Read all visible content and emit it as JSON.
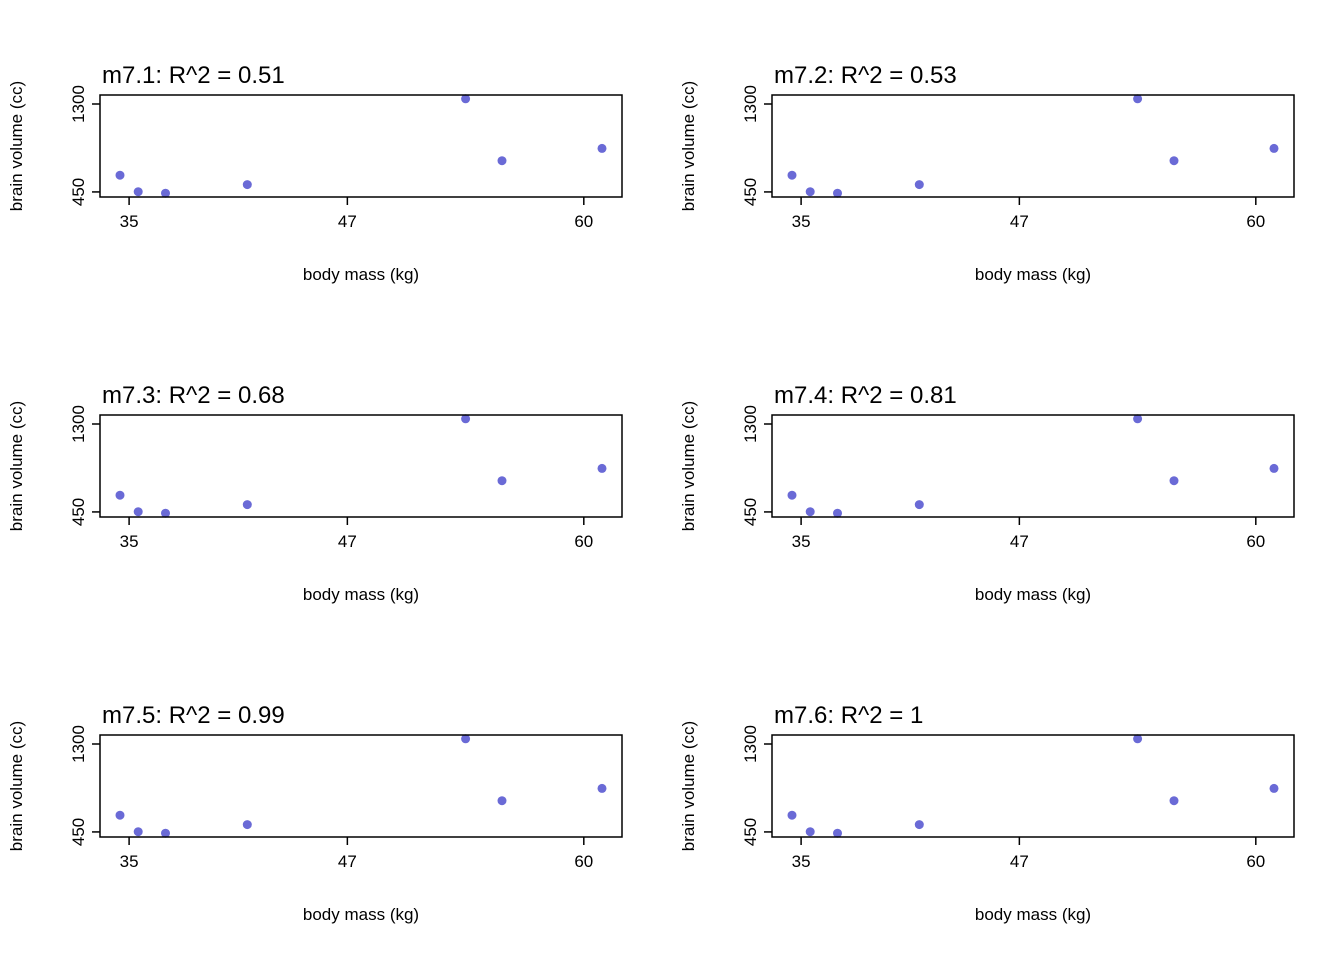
{
  "figure": {
    "layout": "3x2",
    "background": "#ffffff"
  },
  "style": {
    "point_color": "#6a6ad6",
    "line_color": "#000000",
    "band_color": "#dcdcdc",
    "axis_color": "#000000"
  },
  "chart_data": [
    {
      "type": "scatter",
      "title": "m7.1: R^2 = 0.51",
      "model": "m7.1",
      "r_squared": 0.51,
      "fit_degree": 1,
      "xlabel": "body mass (kg)",
      "ylabel": "brain volume (cc)",
      "xlim": [
        33.4,
        62.1
      ],
      "ylim": [
        401,
        1387
      ],
      "x_ticks": [
        35,
        47,
        60
      ],
      "y_ticks": [
        450,
        1300
      ],
      "points": {
        "mass": [
          37.0,
          35.5,
          34.5,
          41.5,
          55.5,
          61.0,
          53.5
        ],
        "brain": [
          438,
          452,
          612,
          521,
          752,
          871,
          1350
        ]
      }
    },
    {
      "type": "scatter",
      "title": "m7.2: R^2 = 0.53",
      "model": "m7.2",
      "r_squared": 0.53,
      "fit_degree": 2,
      "xlabel": "body mass (kg)",
      "ylabel": "brain volume (cc)",
      "xlim": [
        33.4,
        62.1
      ],
      "ylim": [
        401,
        1387
      ],
      "x_ticks": [
        35,
        47,
        60
      ],
      "y_ticks": [
        450,
        1300
      ],
      "points": {
        "mass": [
          37.0,
          35.5,
          34.5,
          41.5,
          55.5,
          61.0,
          53.5
        ],
        "brain": [
          438,
          452,
          612,
          521,
          752,
          871,
          1350
        ]
      }
    },
    {
      "type": "scatter",
      "title": "m7.3: R^2 = 0.68",
      "model": "m7.3",
      "r_squared": 0.68,
      "fit_degree": 3,
      "xlabel": "body mass (kg)",
      "ylabel": "brain volume (cc)",
      "xlim": [
        33.4,
        62.1
      ],
      "ylim": [
        401,
        1387
      ],
      "x_ticks": [
        35,
        47,
        60
      ],
      "y_ticks": [
        450,
        1300
      ],
      "points": {
        "mass": [
          37.0,
          35.5,
          34.5,
          41.5,
          55.5,
          61.0,
          53.5
        ],
        "brain": [
          438,
          452,
          612,
          521,
          752,
          871,
          1350
        ]
      }
    },
    {
      "type": "scatter",
      "title": "m7.4: R^2 = 0.81",
      "model": "m7.4",
      "r_squared": 0.81,
      "fit_degree": 4,
      "xlabel": "body mass (kg)",
      "ylabel": "brain volume (cc)",
      "xlim": [
        33.4,
        62.1
      ],
      "ylim": [
        401,
        1387
      ],
      "x_ticks": [
        35,
        47,
        60
      ],
      "y_ticks": [
        450,
        1300
      ],
      "points": {
        "mass": [
          37.0,
          35.5,
          34.5,
          41.5,
          55.5,
          61.0,
          53.5
        ],
        "brain": [
          438,
          452,
          612,
          521,
          752,
          871,
          1350
        ]
      }
    },
    {
      "type": "scatter",
      "title": "m7.5: R^2 = 0.99",
      "model": "m7.5",
      "r_squared": 0.99,
      "fit_degree": 5,
      "xlabel": "body mass (kg)",
      "ylabel": "brain volume (cc)",
      "xlim": [
        33.4,
        62.1
      ],
      "ylim": [
        401,
        1387
      ],
      "x_ticks": [
        35,
        47,
        60
      ],
      "y_ticks": [
        450,
        1300
      ],
      "points": {
        "mass": [
          37.0,
          35.5,
          34.5,
          41.5,
          55.5,
          61.0,
          53.5
        ],
        "brain": [
          438,
          452,
          612,
          521,
          752,
          871,
          1350
        ]
      }
    },
    {
      "type": "scatter",
      "title": "m7.6: R^2 = 1",
      "model": "m7.6",
      "r_squared": 1,
      "fit_degree": 6,
      "xlabel": "body mass (kg)",
      "ylabel": "brain volume (cc)",
      "xlim": [
        33.4,
        62.1
      ],
      "ylim": [
        401,
        1387
      ],
      "x_ticks": [
        35,
        47,
        60
      ],
      "y_ticks": [
        450,
        1300
      ],
      "points": {
        "mass": [
          37.0,
          35.5,
          34.5,
          41.5,
          55.5,
          61.0,
          53.5
        ],
        "brain": [
          438,
          452,
          612,
          521,
          752,
          871,
          1350
        ]
      }
    }
  ]
}
